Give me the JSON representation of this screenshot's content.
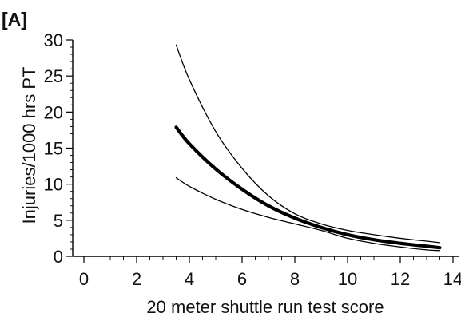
{
  "chart_data": {
    "type": "line",
    "panel_label": "[A]",
    "title": "",
    "xlabel": "20 meter shuttle run test score",
    "ylabel": "Injuries/1000 hrs PT",
    "xlim": [
      0,
      14
    ],
    "ylim": [
      0,
      30
    ],
    "x_ticks": [
      0,
      2,
      4,
      6,
      8,
      10,
      12,
      14
    ],
    "y_ticks": [
      0,
      5,
      10,
      15,
      20,
      25,
      30
    ],
    "x_minor_step": 0.5,
    "y_minor_step": 1,
    "grid": false,
    "legend": "none",
    "series": [
      {
        "role": "estimate",
        "x": [
          3.5,
          4,
          5,
          6,
          7,
          8,
          9,
          10,
          11,
          12,
          13,
          13.5
        ],
        "y": [
          17.9,
          15.6,
          12.1,
          9.3,
          7.0,
          5.3,
          4.0,
          3.0,
          2.3,
          1.8,
          1.4,
          1.2
        ],
        "color": "#000000",
        "weight": "thick"
      },
      {
        "role": "upper confidence limit",
        "x": [
          3.5,
          4,
          5,
          6,
          7,
          8,
          9,
          10,
          11,
          12,
          13,
          13.5
        ],
        "y": [
          29.3,
          24.5,
          17.3,
          12.2,
          8.4,
          5.9,
          4.5,
          3.6,
          3.0,
          2.5,
          2.1,
          1.9
        ],
        "color": "#000000",
        "weight": "thin"
      },
      {
        "role": "lower confidence limit",
        "x": [
          3.5,
          4,
          5,
          6,
          7,
          8,
          9,
          10,
          11,
          12,
          13,
          13.5
        ],
        "y": [
          10.9,
          9.7,
          7.9,
          6.5,
          5.4,
          4.5,
          3.6,
          2.5,
          1.8,
          1.3,
          0.9,
          0.8
        ],
        "color": "#000000",
        "weight": "thin"
      }
    ]
  }
}
